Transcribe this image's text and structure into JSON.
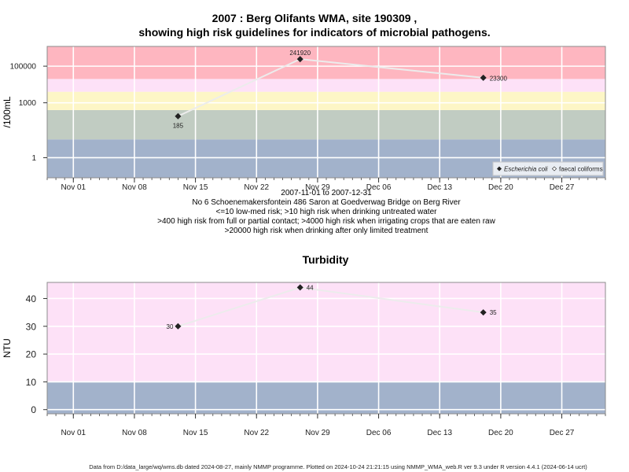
{
  "figure": {
    "title_line1": "2007 : Berg Olifants WMA, site 190309 ,",
    "title_line2": "showing high risk guidelines for indicators of microbial pathogens.",
    "date_range": "2007-11-01 to 2007-12-31",
    "site_description": "No 6 Schoenemakersfontein 486 Saron at Goedverwag Bridge on Berg River",
    "guideline_notes": [
      "<=10 low-med risk; >10 high risk when drinking untreated water",
      ">400 high risk from full or partial contact; >4000 high risk when irrigating crops that are eaten raw",
      ">20000 high risk when drinking after only limited treatment"
    ],
    "footer": "Data from D:/data_large/wq/wms.db dated 2024-08-27, mainly NMMP programme. Plotted on 2024-10-24 21:21:15 using NMMP_WMA_web.R ver 9.3 under R version 4.4.1 (2024-06-14 ucrt)"
  },
  "chart_data": [
    {
      "type": "scatter",
      "title": "",
      "xlabel": "",
      "ylabel": "/100mL",
      "y_scale": "log",
      "ylim": [
        0.08,
        1200000
      ],
      "xlim": [
        "2007-10-29",
        "2008-01-01"
      ],
      "x_ticks": [
        "Nov 01",
        "Nov 08",
        "Nov 15",
        "Nov 22",
        "Nov 29",
        "Dec 06",
        "Dec 13",
        "Dec 20",
        "Dec 27"
      ],
      "x_tick_dates": [
        "2007-11-01",
        "2007-11-08",
        "2007-11-15",
        "2007-11-22",
        "2007-11-29",
        "2007-12-06",
        "2007-12-13",
        "2007-12-20",
        "2007-12-27"
      ],
      "y_ticks": [
        "1",
        "1000",
        "100000"
      ],
      "y_tick_values": [
        1,
        1000,
        100000
      ],
      "grid": true,
      "bands": [
        {
          "from": 0.08,
          "to": 10,
          "color": "#a2b2cb"
        },
        {
          "from": 10,
          "to": 400,
          "color": "#c1ccc2"
        },
        {
          "from": 400,
          "to": 4000,
          "color": "#fdf6c6"
        },
        {
          "from": 4000,
          "to": 20000,
          "color": "#fde1f7"
        },
        {
          "from": 20000,
          "to": 1200000,
          "color": "#feb6c0"
        }
      ],
      "series": [
        {
          "name": "Escherichia coli",
          "marker": "filled-diamond",
          "x": [
            "2007-11-13",
            "2007-11-27",
            "2007-12-18"
          ],
          "values": [
            185,
            241920,
            23300
          ],
          "labels": [
            "185",
            "241920",
            "23300"
          ]
        },
        {
          "name": "faecal coliforms",
          "marker": "open-diamond",
          "x": [],
          "values": [],
          "labels": []
        }
      ],
      "legend_position": "bottom-right"
    },
    {
      "type": "scatter",
      "title": "Turbidity",
      "xlabel": "",
      "ylabel": "NTU",
      "y_scale": "linear",
      "ylim": [
        -1.5,
        45.8
      ],
      "xlim": [
        "2007-10-29",
        "2008-01-01"
      ],
      "x_ticks": [
        "Nov 01",
        "Nov 08",
        "Nov 15",
        "Nov 22",
        "Nov 29",
        "Dec 06",
        "Dec 13",
        "Dec 20",
        "Dec 27"
      ],
      "x_tick_dates": [
        "2007-11-01",
        "2007-11-08",
        "2007-11-15",
        "2007-11-22",
        "2007-11-29",
        "2007-12-06",
        "2007-12-13",
        "2007-12-20",
        "2007-12-27"
      ],
      "y_ticks": [
        "0",
        "10",
        "20",
        "30",
        "40"
      ],
      "y_tick_values": [
        0,
        10,
        20,
        30,
        40
      ],
      "grid": true,
      "bands": [
        {
          "from": -1.5,
          "to": 10,
          "color": "#a2b2cb"
        },
        {
          "from": 10,
          "to": 45.8,
          "color": "#fde1f7"
        }
      ],
      "series": [
        {
          "name": "",
          "marker": "filled-diamond",
          "x": [
            "2007-11-13",
            "2007-11-27",
            "2007-12-18"
          ],
          "values": [
            30,
            44,
            35
          ],
          "labels": [
            "30",
            "44",
            "35"
          ]
        }
      ]
    }
  ]
}
